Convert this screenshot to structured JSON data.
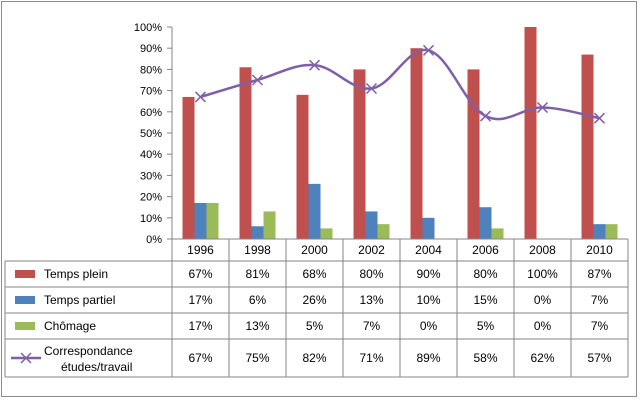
{
  "chart_data": {
    "type": "bar",
    "title": "",
    "xlabel": "",
    "ylabel": "",
    "ylim": [
      0,
      100
    ],
    "ytick_step": 10,
    "value_format": "percent",
    "legend_placement": "data-table",
    "categories": [
      "1996",
      "1998",
      "2000",
      "2002",
      "2004",
      "2006",
      "2008",
      "2010"
    ],
    "series": [
      {
        "name": "Temps plein",
        "kind": "bar",
        "color": "#c0504d",
        "values": [
          67,
          81,
          68,
          80,
          90,
          80,
          100,
          87
        ]
      },
      {
        "name": "Temps partiel",
        "kind": "bar",
        "color": "#4f81bd",
        "values": [
          17,
          6,
          26,
          13,
          10,
          15,
          0,
          7
        ]
      },
      {
        "name": "Chômage",
        "kind": "bar",
        "color": "#9bbb59",
        "values": [
          17,
          13,
          5,
          7,
          0,
          5,
          0,
          7
        ]
      },
      {
        "name": "Correspondance études/travail",
        "kind": "line",
        "color": "#7f5fa6",
        "marker": "x",
        "smooth": true,
        "values": [
          67,
          75,
          82,
          71,
          89,
          58,
          62,
          57
        ]
      }
    ]
  }
}
